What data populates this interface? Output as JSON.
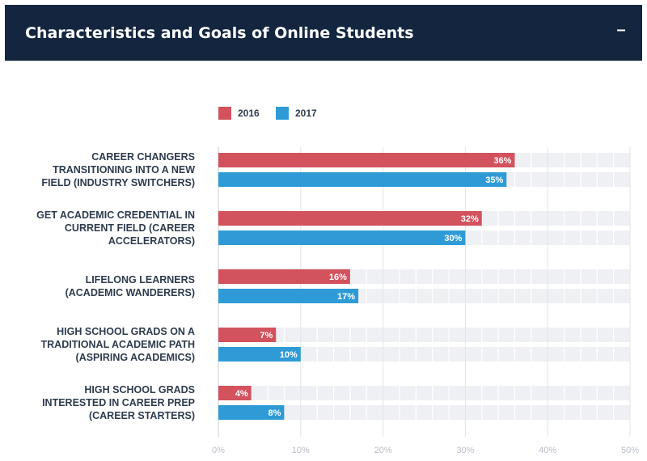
{
  "header": {
    "title": "Characteristics and Goals of Online Students",
    "collapse_symbol": "–"
  },
  "colors": {
    "header_bg": "#13253f",
    "series_2016": "#d2525e",
    "series_2017": "#2f9bd6",
    "track": "#eef0f4"
  },
  "chart_data": {
    "type": "bar",
    "orientation": "horizontal",
    "title": "",
    "categories": [
      [
        "CAREER CHANGERS",
        "TRANSITIONING INTO A NEW",
        "FIELD (INDUSTRY SWITCHERS)"
      ],
      [
        "GET ACADEMIC CREDENTIAL IN",
        "CURRENT FIELD (CAREER",
        "ACCELERATORS)"
      ],
      [
        "LIFELONG LEARNERS",
        "(ACADEMIC WANDERERS)"
      ],
      [
        "HIGH SCHOOL GRADS ON A",
        "TRADITIONAL ACADEMIC PATH",
        "(ASPIRING ACADEMICS)"
      ],
      [
        "HIGH SCHOOL GRADS",
        "INTERESTED IN CAREER PREP",
        "(CAREER STARTERS)"
      ]
    ],
    "series": [
      {
        "name": "2016",
        "color": "#d2525e",
        "values": [
          36,
          32,
          16,
          7,
          4
        ]
      },
      {
        "name": "2017",
        "color": "#2f9bd6",
        "values": [
          35,
          30,
          17,
          10,
          8
        ]
      }
    ],
    "xlim": [
      0,
      50
    ],
    "xticks": [
      0,
      10,
      20,
      30,
      40,
      50
    ],
    "tick_suffix": "%",
    "legend_position": "top-left",
    "grid": true
  }
}
